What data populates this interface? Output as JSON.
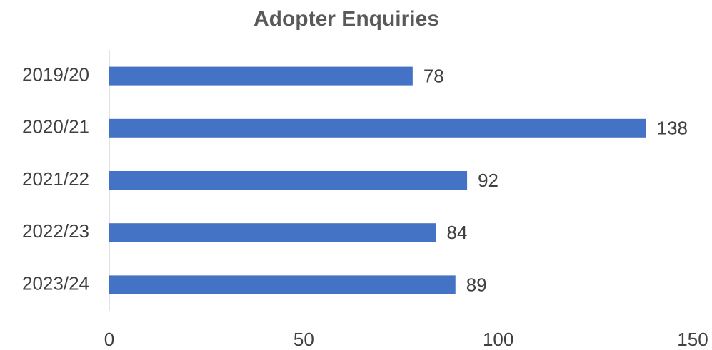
{
  "chart_data": {
    "type": "bar",
    "orientation": "horizontal",
    "title": "Adopter Enquiries",
    "categories": [
      "2019/20",
      "2020/21",
      "2021/22",
      "2022/23",
      "2023/24"
    ],
    "values": [
      78,
      138,
      92,
      84,
      89
    ],
    "color": "#4472c4",
    "xlim": [
      0,
      150
    ],
    "xticks": [
      0,
      50,
      100,
      150
    ],
    "grid": false
  }
}
